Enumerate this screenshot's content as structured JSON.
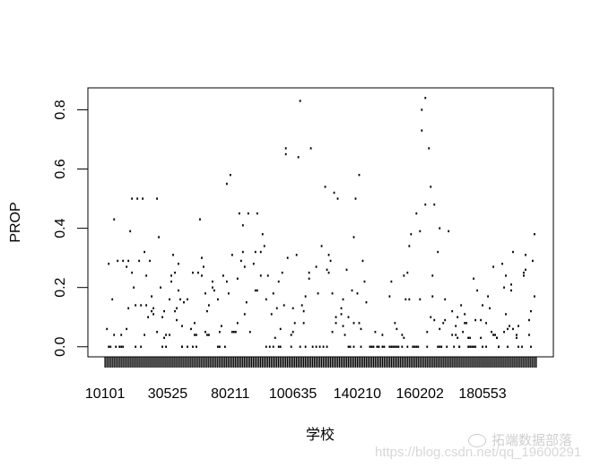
{
  "chart_data": {
    "type": "scatter",
    "title": "",
    "xlabel": "学校",
    "ylabel": "PROP",
    "category_count": 242,
    "xtick_labels": [
      {
        "index": 1,
        "label": "10101"
      },
      {
        "index": 36,
        "label": "30525"
      },
      {
        "index": 71,
        "label": "80211"
      },
      {
        "index": 106,
        "label": "100635"
      },
      {
        "index": 142,
        "label": "140210"
      },
      {
        "index": 177,
        "label": "160202"
      },
      {
        "index": 212,
        "label": "180553"
      }
    ],
    "yticks": [
      "0.0",
      "0.2",
      "0.4",
      "0.6",
      "0.8"
    ],
    "ylim": [
      -0.034,
      0.874
    ],
    "xlim": [
      -8.6,
      251.6
    ],
    "grid": false,
    "point_color": "#000000",
    "zero_indices": [
      3,
      4,
      7,
      9,
      10,
      11,
      18,
      21,
      33,
      35,
      44,
      44,
      47,
      50,
      52,
      64,
      65,
      68,
      91,
      93,
      95,
      98,
      99,
      105,
      110,
      113,
      117,
      119,
      121,
      123,
      125,
      137,
      138,
      140,
      144,
      149,
      150,
      151,
      153,
      154,
      156,
      157,
      160,
      161,
      162,
      163,
      164,
      165,
      167,
      170,
      173,
      174,
      175,
      176,
      181,
      187,
      188,
      189,
      192,
      196,
      199,
      199,
      204,
      205,
      206,
      207,
      208,
      212,
      214,
      221,
      221,
      226,
      232,
      234,
      239
    ],
    "points": [
      [
        2,
        0.06
      ],
      [
        3,
        0.28
      ],
      [
        5,
        0.16
      ],
      [
        6,
        0.43
      ],
      [
        6,
        0.04
      ],
      [
        8,
        0.29
      ],
      [
        10,
        0.04
      ],
      [
        11,
        0.29
      ],
      [
        13,
        0.06
      ],
      [
        13,
        0.27
      ],
      [
        14,
        0.13
      ],
      [
        14,
        0.29
      ],
      [
        15,
        0.39
      ],
      [
        16,
        0.5
      ],
      [
        16,
        0.25
      ],
      [
        17,
        0.2
      ],
      [
        18,
        0.14
      ],
      [
        19,
        0.5
      ],
      [
        20,
        0.29
      ],
      [
        21,
        0.14
      ],
      [
        22,
        0.5
      ],
      [
        23,
        0.04
      ],
      [
        23,
        0.32
      ],
      [
        24,
        0.14
      ],
      [
        24,
        0.24
      ],
      [
        25,
        0.1
      ],
      [
        26,
        0.29
      ],
      [
        27,
        0.12
      ],
      [
        27,
        0.17
      ],
      [
        28,
        0.11
      ],
      [
        28,
        0.13
      ],
      [
        30,
        0.5
      ],
      [
        30,
        0.05
      ],
      [
        31,
        0.37
      ],
      [
        32,
        0.2
      ],
      [
        33,
        0.1
      ],
      [
        34,
        0.03
      ],
      [
        34,
        0.12
      ],
      [
        35,
        0.04
      ],
      [
        37,
        0.04
      ],
      [
        37,
        0.16
      ],
      [
        38,
        0.24
      ],
      [
        38,
        0.22
      ],
      [
        39,
        0.31
      ],
      [
        40,
        0.12
      ],
      [
        40,
        0.25
      ],
      [
        41,
        0.13
      ],
      [
        41,
        0.09
      ],
      [
        42,
        0.28
      ],
      [
        42,
        0.19
      ],
      [
        43,
        0.16
      ],
      [
        44,
        0.07
      ],
      [
        45,
        0.15
      ],
      [
        47,
        0.16
      ],
      [
        49,
        0.06
      ],
      [
        50,
        0.25
      ],
      [
        51,
        0.08
      ],
      [
        51,
        0.04
      ],
      [
        52,
        0.04
      ],
      [
        53,
        0.25
      ],
      [
        54,
        0.43
      ],
      [
        55,
        0.24
      ],
      [
        55,
        0.3
      ],
      [
        56,
        0.27
      ],
      [
        57,
        0.05
      ],
      [
        57,
        0.18
      ],
      [
        58,
        0.04
      ],
      [
        58,
        0.12
      ],
      [
        59,
        0.14
      ],
      [
        59,
        0.04
      ],
      [
        61,
        0.22
      ],
      [
        61,
        0.2
      ],
      [
        62,
        0.19
      ],
      [
        64,
        0.16
      ],
      [
        65,
        0.05
      ],
      [
        66,
        0.07
      ],
      [
        67,
        0.24
      ],
      [
        69,
        0.55
      ],
      [
        69,
        0.22
      ],
      [
        70,
        0.18
      ],
      [
        71,
        0.58
      ],
      [
        72,
        0.05
      ],
      [
        72,
        0.31
      ],
      [
        73,
        0.05
      ],
      [
        74,
        0.05
      ],
      [
        75,
        0.23
      ],
      [
        75,
        0.08
      ],
      [
        76,
        0.45
      ],
      [
        77,
        0.29
      ],
      [
        78,
        0.41
      ],
      [
        78,
        0.32
      ],
      [
        79,
        0.11
      ],
      [
        79,
        0.27
      ],
      [
        80,
        0.15
      ],
      [
        81,
        0.45
      ],
      [
        82,
        0.05
      ],
      [
        84,
        0.28
      ],
      [
        85,
        0.32
      ],
      [
        85,
        0.19
      ],
      [
        86,
        0.19
      ],
      [
        86,
        0.45
      ],
      [
        88,
        0.32
      ],
      [
        88,
        0.24
      ],
      [
        89,
        0.38
      ],
      [
        90,
        0.34
      ],
      [
        91,
        0.16
      ],
      [
        92,
        0.24
      ],
      [
        94,
        0.11
      ],
      [
        95,
        0.18
      ],
      [
        96,
        0.03
      ],
      [
        97,
        0.13
      ],
      [
        98,
        0.22
      ],
      [
        99,
        0.06
      ],
      [
        100,
        0.25
      ],
      [
        101,
        0.14
      ],
      [
        102,
        0.65
      ],
      [
        102,
        0.67
      ],
      [
        103,
        0.3
      ],
      [
        105,
        0.04
      ],
      [
        106,
        0.13
      ],
      [
        106,
        0.05
      ],
      [
        107,
        0.08
      ],
      [
        108,
        0.31
      ],
      [
        109,
        0.64
      ],
      [
        110,
        0.83
      ],
      [
        111,
        0.14
      ],
      [
        112,
        0.08
      ],
      [
        112,
        0.12
      ],
      [
        113,
        0.17
      ],
      [
        115,
        0.23
      ],
      [
        115,
        0.25
      ],
      [
        116,
        0.67
      ],
      [
        119,
        0.27
      ],
      [
        120,
        0.18
      ],
      [
        122,
        0.34
      ],
      [
        124,
        0.54
      ],
      [
        125,
        0.26
      ],
      [
        126,
        0.31
      ],
      [
        126,
        0.25
      ],
      [
        127,
        0.29
      ],
      [
        128,
        0.05
      ],
      [
        128,
        0.18
      ],
      [
        129,
        0.52
      ],
      [
        130,
        0.08
      ],
      [
        130,
        0.1
      ],
      [
        131,
        0.5
      ],
      [
        133,
        0.11
      ],
      [
        133,
        0.13
      ],
      [
        134,
        0.16
      ],
      [
        134,
        0.07
      ],
      [
        135,
        0.04
      ],
      [
        136,
        0.26
      ],
      [
        137,
        0.1
      ],
      [
        139,
        0.19
      ],
      [
        140,
        0.37
      ],
      [
        140,
        0.08
      ],
      [
        141,
        0.5
      ],
      [
        142,
        0.18
      ],
      [
        143,
        0.58
      ],
      [
        143,
        0.08
      ],
      [
        144,
        0.06
      ],
      [
        145,
        0.29
      ],
      [
        146,
        0.22
      ],
      [
        147,
        0.15
      ],
      [
        152,
        0.05
      ],
      [
        156,
        0.04
      ],
      [
        160,
        0.17
      ],
      [
        161,
        0.22
      ],
      [
        163,
        0.08
      ],
      [
        164,
        0.06
      ],
      [
        167,
        0.04
      ],
      [
        168,
        0.03
      ],
      [
        168,
        0.24
      ],
      [
        169,
        0.16
      ],
      [
        170,
        0.25
      ],
      [
        171,
        0.34
      ],
      [
        171,
        0.16
      ],
      [
        172,
        0.38
      ],
      [
        175,
        0.45
      ],
      [
        177,
        0.39
      ],
      [
        177,
        0.16
      ],
      [
        178,
        0.73
      ],
      [
        178,
        0.8
      ],
      [
        180,
        0.84
      ],
      [
        180,
        0.48
      ],
      [
        181,
        0.05
      ],
      [
        182,
        0.67
      ],
      [
        183,
        0.1
      ],
      [
        183,
        0.54
      ],
      [
        184,
        0.24
      ],
      [
        184,
        0.17
      ],
      [
        185,
        0.09
      ],
      [
        185,
        0.48
      ],
      [
        187,
        0.32
      ],
      [
        188,
        0.06
      ],
      [
        188,
        0.4
      ],
      [
        190,
        0.08
      ],
      [
        191,
        0.09
      ],
      [
        191,
        0.16
      ],
      [
        193,
        0.39
      ],
      [
        195,
        0.12
      ],
      [
        195,
        0.04
      ],
      [
        197,
        0.04
      ],
      [
        197,
        0.07
      ],
      [
        198,
        0.03
      ],
      [
        198,
        0.1
      ],
      [
        200,
        0.14
      ],
      [
        201,
        0.05
      ],
      [
        202,
        0.08
      ],
      [
        202,
        0.11
      ],
      [
        203,
        0.08
      ],
      [
        204,
        0.03
      ],
      [
        205,
        0.03
      ],
      [
        207,
        0.23
      ],
      [
        208,
        0.09
      ],
      [
        209,
        0.19
      ],
      [
        211,
        0.09
      ],
      [
        211,
        0.03
      ],
      [
        212,
        0.14
      ],
      [
        214,
        0.08
      ],
      [
        215,
        0.17
      ],
      [
        216,
        0.13
      ],
      [
        217,
        0.05
      ],
      [
        218,
        0.04
      ],
      [
        218,
        0.27
      ],
      [
        219,
        0.04
      ],
      [
        220,
        0.03
      ],
      [
        220,
        0.03
      ],
      [
        223,
        0.28
      ],
      [
        224,
        0.2
      ],
      [
        224,
        0.05
      ],
      [
        225,
        0.11
      ],
      [
        225,
        0.24
      ],
      [
        226,
        0.06
      ],
      [
        227,
        0.07
      ],
      [
        228,
        0.21
      ],
      [
        228,
        0.19
      ],
      [
        229,
        0.06
      ],
      [
        229,
        0.32
      ],
      [
        231,
        0.03
      ],
      [
        231,
        0.04
      ],
      [
        232,
        0.07
      ],
      [
        235,
        0.24
      ],
      [
        235,
        0.25
      ],
      [
        236,
        0.26
      ],
      [
        236,
        0.31
      ],
      [
        238,
        0.09
      ],
      [
        238,
        0.04
      ],
      [
        239,
        0.12
      ],
      [
        240,
        0.29
      ],
      [
        241,
        0.38
      ],
      [
        241,
        0.17
      ]
    ]
  },
  "watermark": {
    "url": "https://blog.csdn.net/qq_19600291",
    "brand": "拓端数据部落",
    "brand_icon": "wechat-icon"
  }
}
